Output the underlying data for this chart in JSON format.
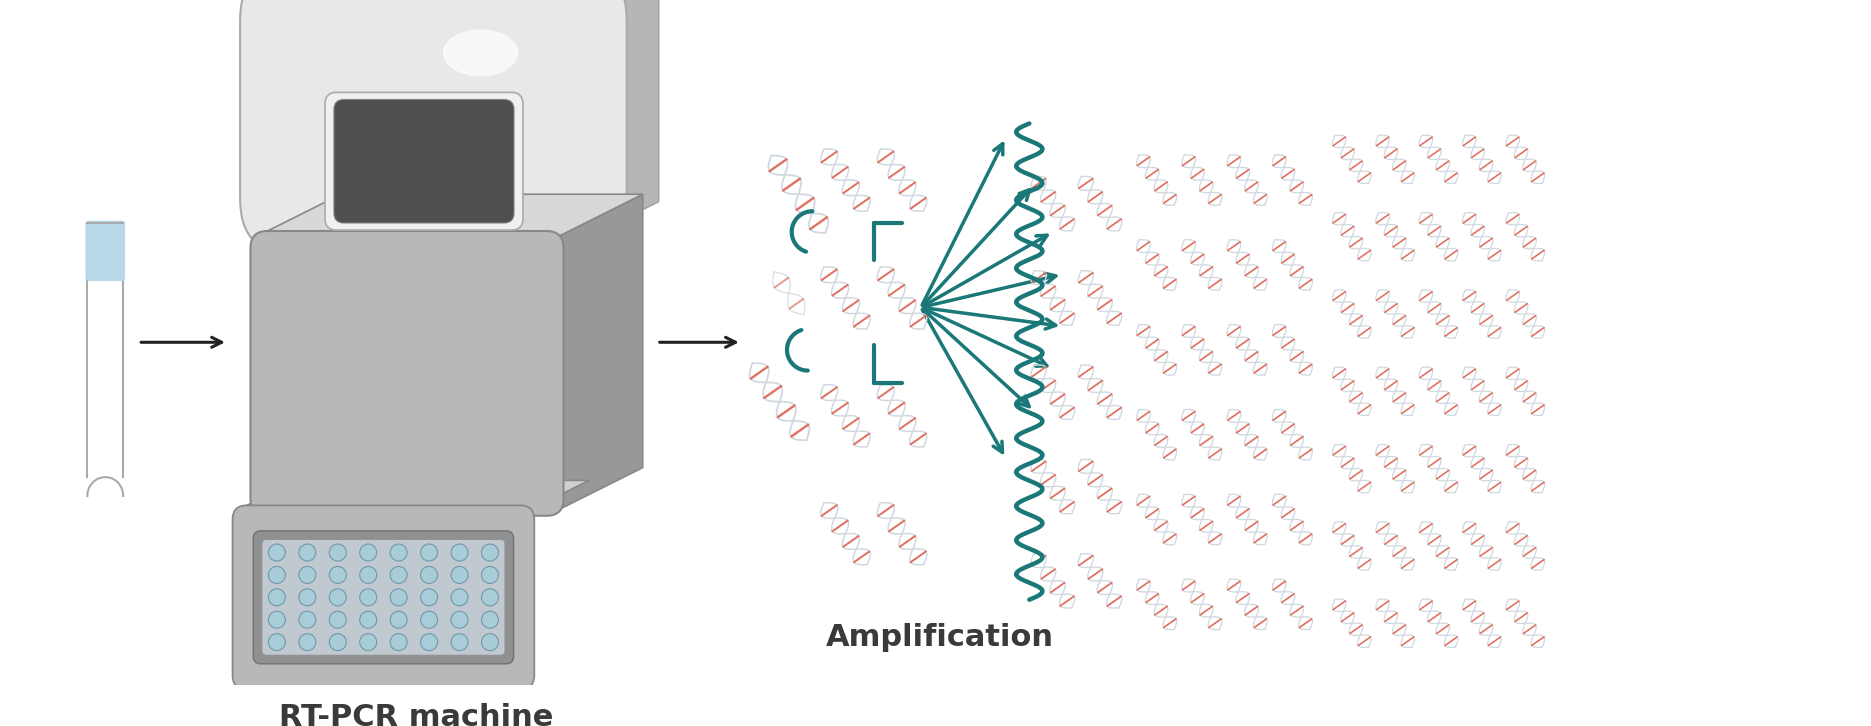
{
  "bg_color": "#ffffff",
  "label_machine": "RT-PCR machine",
  "label_amplification": "Amplification",
  "label_color": "#3a3a3a",
  "label_fontsize": 22,
  "label_fontweight": "bold",
  "arrow_color": "#222222",
  "teal": "#1a7878",
  "dna_backbone": "#d0d8e0",
  "dna_rung_blue": "#7abcd8",
  "dna_rung_red": "#e07060",
  "dna_rung_teal": "#1a8888",
  "tube_cap_color": "#b8d8e8",
  "tube_outline": "#aaaaaa",
  "machine_light": "#d8d8d8",
  "machine_mid": "#b8b8b8",
  "machine_dark": "#989898",
  "machine_darkest": "#606060",
  "screen_color": "#505050",
  "well_color": "#a8ccd8",
  "well_edge": "#7099aa"
}
